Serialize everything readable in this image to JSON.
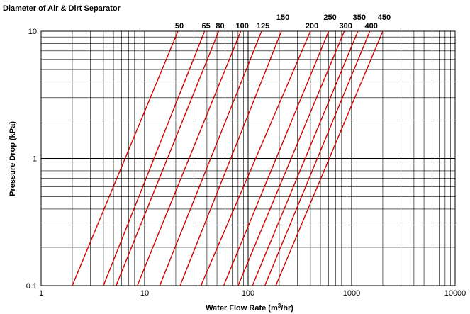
{
  "chart_data": {
    "type": "line",
    "title": "Diameter of Air & Dirt Separator",
    "xlabel": "Water Flow Rate  (m",
    "xlabel_sup": "3",
    "xlabel_end": "/hr)",
    "ylabel": "Pressure Drop (kPa)",
    "x_scale": "log",
    "y_scale": "log",
    "xlim": [
      1,
      10000
    ],
    "ylim": [
      0.1,
      10
    ],
    "x_ticks": [
      "1",
      "10",
      "100",
      "1000",
      "10000"
    ],
    "y_ticks": [
      "0.1",
      "1",
      "10"
    ],
    "grid": true,
    "line_color": "#d40000",
    "series": [
      {
        "name": "50",
        "x": [
          2.0,
          21.0
        ],
        "y": [
          0.1,
          10
        ]
      },
      {
        "name": "65",
        "x": [
          4.0,
          38.0
        ],
        "y": [
          0.1,
          10
        ]
      },
      {
        "name": "80",
        "x": [
          5.3,
          52.0
        ],
        "y": [
          0.1,
          10
        ]
      },
      {
        "name": "100",
        "x": [
          8.5,
          85.0
        ],
        "y": [
          0.1,
          10
        ]
      },
      {
        "name": "125",
        "x": [
          14.0,
          135.0
        ],
        "y": [
          0.1,
          10
        ]
      },
      {
        "name": "150",
        "x": [
          22.0,
          210.0
        ],
        "y": [
          0.1,
          10
        ]
      },
      {
        "name": "200",
        "x": [
          35.0,
          400.0
        ],
        "y": [
          0.1,
          10
        ]
      },
      {
        "name": "250",
        "x": [
          58.0,
          600.0
        ],
        "y": [
          0.1,
          10
        ]
      },
      {
        "name": "300",
        "x": [
          80.0,
          850.0
        ],
        "y": [
          0.1,
          10
        ]
      },
      {
        "name": "350",
        "x": [
          110.0,
          1150.0
        ],
        "y": [
          0.1,
          10
        ]
      },
      {
        "name": "400",
        "x": [
          145.0,
          1500.0
        ],
        "y": [
          0.1,
          10
        ]
      },
      {
        "name": "450",
        "x": [
          185.0,
          2000.0
        ],
        "y": [
          0.1,
          10
        ]
      }
    ]
  }
}
